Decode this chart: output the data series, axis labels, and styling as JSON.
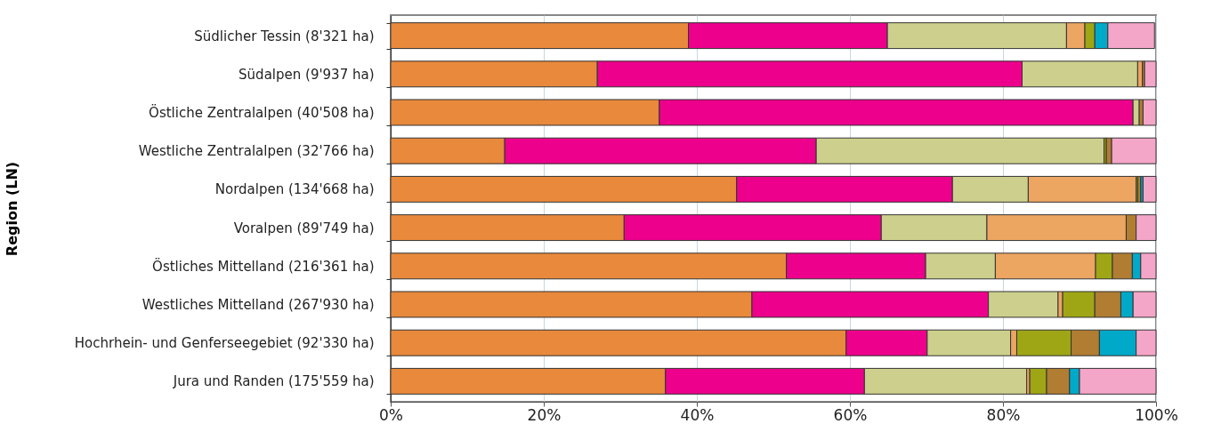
{
  "chart_data": {
    "type": "bar",
    "orientation": "horizontal",
    "stacked": true,
    "ylabel": "Region (LN)",
    "categories": [
      "Südlicher Tessin (8'321 ha)",
      "Südalpen (9'937 ha)",
      "Östliche Zentralalpen (40'508 ha)",
      "Westliche Zentralalpen (32'766 ha)",
      "Nordalpen (134'668 ha)",
      "Voralpen (89'749 ha)",
      "Östliches Mittelland (216'361 ha)",
      "Westliches Mittelland (267'930 ha)",
      "Hochrhein- und Genferseegebiet (92'330 ha)",
      "Jura und Randen (175'559 ha)"
    ],
    "series": [
      {
        "color": "#e8893c",
        "values": [
          38.9,
          27.0,
          35.1,
          14.9,
          45.2,
          30.5,
          51.7,
          47.2,
          59.5,
          35.9
        ]
      },
      {
        "color": "#ec008c",
        "values": [
          26.0,
          55.5,
          61.9,
          40.7,
          28.2,
          33.6,
          18.2,
          30.9,
          10.6,
          26.0
        ]
      },
      {
        "color": "#cdd08c",
        "values": [
          23.4,
          15.1,
          0.8,
          37.6,
          9.9,
          13.8,
          9.1,
          9.1,
          10.9,
          21.2
        ]
      },
      {
        "color": "#eda562",
        "values": [
          2.4,
          0.6,
          null,
          null,
          14.1,
          18.2,
          13.1,
          0.6,
          0.8,
          0.4
        ]
      },
      {
        "color": "#9ea615",
        "values": [
          1.3,
          null,
          null,
          0.3,
          0.2,
          null,
          2.2,
          4.2,
          7.1,
          2.2
        ]
      },
      {
        "color": "#b07d32",
        "values": [
          null,
          0.3,
          0.5,
          0.7,
          0.4,
          1.3,
          2.6,
          3.4,
          3.7,
          3.0
        ]
      },
      {
        "color": "#00a9c8",
        "values": [
          1.7,
          null,
          null,
          null,
          0.3,
          null,
          1.1,
          1.6,
          4.8,
          1.3
        ]
      },
      {
        "color": "#f4a6c8",
        "values": [
          6.1,
          1.5,
          1.7,
          5.8,
          1.7,
          2.6,
          2.0,
          3.0,
          2.6,
          10.0
        ]
      }
    ],
    "xlim": [
      0,
      100
    ],
    "xticks": [
      {
        "value": 0,
        "label": "0%"
      },
      {
        "value": 20,
        "label": "20%"
      },
      {
        "value": 40,
        "label": "40%"
      },
      {
        "value": 60,
        "label": "60%"
      },
      {
        "value": 80,
        "label": "80%"
      },
      {
        "value": 100,
        "label": "100%"
      }
    ],
    "grid": "x",
    "legend": false
  }
}
